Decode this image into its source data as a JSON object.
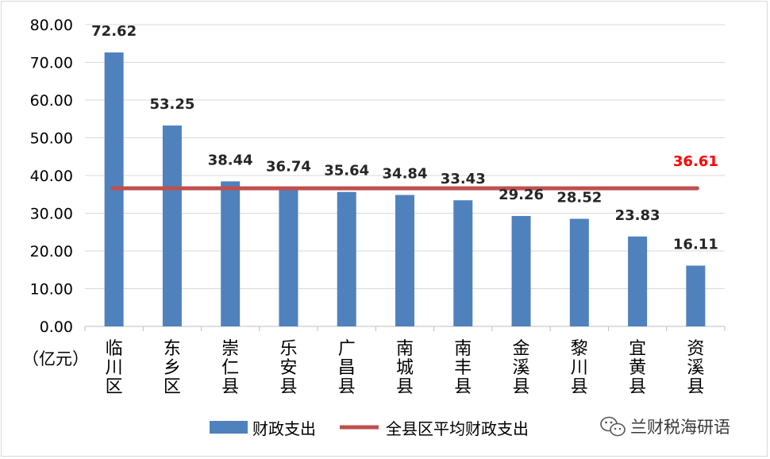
{
  "chart_data": {
    "type": "bar",
    "unit_label": "（亿元）",
    "categories": [
      "临川区",
      "东乡区",
      "崇仁县",
      "乐安县",
      "广昌县",
      "南城县",
      "南丰县",
      "金溪县",
      "黎川县",
      "宜黄县",
      "资溪县"
    ],
    "series": [
      {
        "name": "财政支出",
        "type": "bar",
        "color": "#4f81bd",
        "values": [
          72.62,
          53.25,
          38.44,
          36.74,
          35.64,
          34.84,
          33.43,
          29.26,
          28.52,
          23.83,
          16.11
        ],
        "labels": [
          "72.62",
          "53.25",
          "38.44",
          "36.74",
          "35.64",
          "34.84",
          "33.43",
          "29.26",
          "28.52",
          "23.83",
          "16.11"
        ]
      },
      {
        "name": "全县区平均财政支出",
        "type": "line",
        "color": "#c0504d",
        "value": 36.61,
        "label": "36.61",
        "label_color": "#ff0000"
      }
    ],
    "ylim": [
      0,
      80
    ],
    "yticks": [
      "0.00",
      "10.00",
      "20.00",
      "30.00",
      "40.00",
      "50.00",
      "60.00",
      "70.00",
      "80.00"
    ],
    "grid": true,
    "legend_position": "bottom"
  },
  "watermark": {
    "text": "兰财税海研语",
    "icon": "wechat-icon"
  }
}
